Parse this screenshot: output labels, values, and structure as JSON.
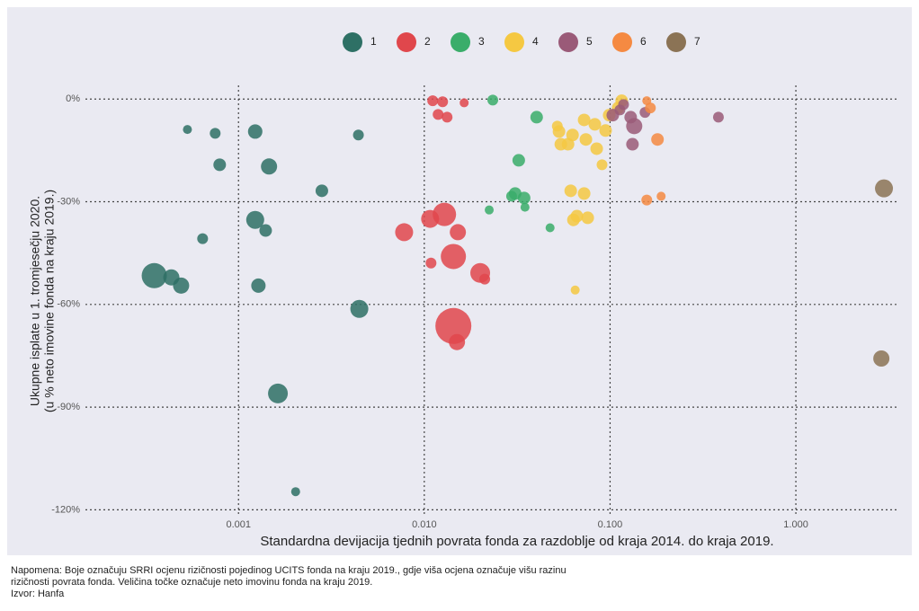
{
  "chart_data": {
    "type": "scatter",
    "x_label": "Standardna devijacija tjednih povrata fonda za razdoblje od kraja 2014. do kraja 2019.",
    "y_label": [
      "Ukupne isplate u 1. tromjesečju 2020.",
      "(u % neto imovine fonda na kraju 2019.)"
    ],
    "xscale": "log",
    "grid": true,
    "legend_position": "top",
    "xlim": [
      0.00015,
      3.6
    ],
    "ylim": [
      -122,
      4
    ],
    "xticks": [
      0.001,
      {
        "value": 0.01,
        "label": "0.010"
      },
      {
        "value": 0.1,
        "label": "0.100"
      },
      {
        "value": 1,
        "label": "1.000"
      }
    ],
    "yticks": [
      {
        "value": 0,
        "label": "0%"
      },
      {
        "value": -30,
        "label": "-30%"
      },
      {
        "value": -60,
        "label": "-60%"
      },
      {
        "value": -90,
        "label": "-90%"
      },
      {
        "value": -120,
        "label": "-120%"
      }
    ],
    "series": [
      {
        "name": "1",
        "color": "#2e7065",
        "x": [
          0.000531,
          0.000749,
          0.00123,
          0.00442,
          0.000792,
          0.00146,
          0.00281,
          0.00123,
          0.0014,
          0.000641,
          0.000352,
          0.000435,
          0.000491,
          0.00128,
          0.00447,
          0.00163,
          0.00203
        ],
        "values": [
          -8.9,
          -10,
          -9.5,
          -10.5,
          -19.2,
          -19.7,
          -26.8,
          -35.3,
          -38.4,
          -40.8,
          -51.6,
          -52.1,
          -54.5,
          -54.5,
          -61.3,
          -86,
          -114.7
        ],
        "sizes": [
          5,
          6,
          8,
          6,
          7,
          9,
          7,
          10,
          7,
          6,
          14,
          9,
          9,
          8,
          10,
          11,
          5
        ]
      },
      {
        "name": "2",
        "color": "#e0474c",
        "x": [
          0.0111,
          0.01255,
          0.01187,
          0.01327,
          0.01639,
          0.00779,
          0.01075,
          0.01283,
          0.01516,
          0.01434,
          0.01087,
          0.02,
          0.02115,
          0.01434,
          0.01499
        ],
        "values": [
          -0.5,
          -0.8,
          -4.5,
          -5.3,
          -1.1,
          -38.9,
          -35,
          -33.7,
          -38.9,
          -46,
          -47.9,
          -50.8,
          -52.6,
          -66.3,
          -71
        ],
        "sizes": [
          6,
          6,
          6,
          6,
          5,
          10,
          10,
          13,
          9,
          14,
          6,
          11,
          6,
          20,
          9
        ]
      },
      {
        "name": "3",
        "color": "#3aad6a",
        "x": [
          0.02337,
          0.04025,
          0.03224,
          0.03084,
          0.03446,
          0.02951,
          0.03484,
          0.02236,
          0.04754
        ],
        "values": [
          -0.3,
          -5.3,
          -17.9,
          -27.6,
          -28.9,
          -28.4,
          -31.6,
          -32.4,
          -37.6
        ],
        "sizes": [
          6,
          7,
          7,
          7,
          7,
          6,
          5,
          5,
          5
        ]
      },
      {
        "name": "4",
        "color": "#f5c842",
        "x": [
          0.1155,
          0.1105,
          0.0989,
          0.0725,
          0.0828,
          0.0531,
          0.0628,
          0.0741,
          0.0594,
          0.0847,
          0.0543,
          0.0905,
          0.0614,
          0.0725,
          0.0663,
          0.0758,
          0.0635,
          0.0649,
          0.052,
          0.0946
        ],
        "values": [
          -0.5,
          -2.6,
          -4.7,
          -6.1,
          -7.4,
          -9.5,
          -10.5,
          -11.8,
          -13.2,
          -14.5,
          -13.2,
          -19.2,
          -26.8,
          -27.6,
          -34.2,
          -34.7,
          -35.3,
          -55.8,
          -7.9,
          -9.2
        ],
        "sizes": [
          7,
          7,
          7,
          7,
          7,
          7,
          7,
          7,
          7,
          7,
          7,
          6,
          7,
          7,
          7,
          7,
          7,
          5,
          6,
          7
        ]
      },
      {
        "name": "5",
        "color": "#9a5a78",
        "x": [
          0.1182,
          0.1034,
          0.1291,
          0.1349,
          0.132,
          0.1542,
          0.113,
          0.383
        ],
        "values": [
          -1.6,
          -4.7,
          -5.3,
          -7.9,
          -13.2,
          -3.9,
          -3.2,
          -5.3
        ],
        "sizes": [
          6,
          7,
          7,
          9,
          7,
          6,
          6,
          6
        ]
      },
      {
        "name": "6",
        "color": "#f58a42",
        "x": [
          0.1576,
          0.1648,
          0.18,
          0.1576,
          0.1883
        ],
        "values": [
          -0.5,
          -2.6,
          -11.8,
          -29.5,
          -28.4
        ],
        "sizes": [
          5,
          6,
          7,
          6,
          5
        ]
      },
      {
        "name": "7",
        "color": "#8b7355",
        "x": [
          2.98,
          2.885
        ],
        "values": [
          -26.1,
          -75.8
        ],
        "sizes": [
          10,
          9
        ]
      }
    ]
  },
  "notes": [
    "Napomena: Boje označuju SRRI ocjenu rizičnosti pojedinog UCITS fonda na kraju 2019., gdje viša ocjena označuje višu razinu",
    "rizičnosti povrata fonda. Veličina točke označuje neto imovinu fonda na kraju 2019.",
    "Izvor: Hanfa"
  ]
}
